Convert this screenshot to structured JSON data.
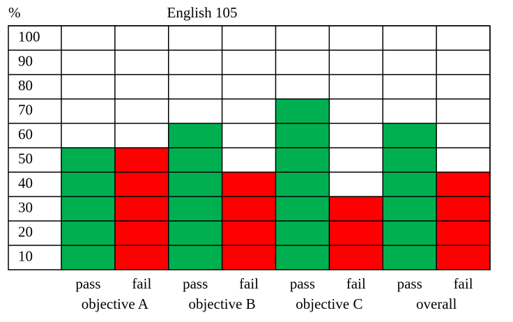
{
  "chart_data": {
    "type": "bar",
    "title": "English 105",
    "ylabel": "%",
    "categories": [
      "objective A",
      "objective B",
      "objective C",
      "overall"
    ],
    "series": [
      {
        "name": "pass",
        "color": "#00b050",
        "values": [
          50,
          60,
          70,
          60
        ]
      },
      {
        "name": "fail",
        "color": "#ff0000",
        "values": [
          50,
          40,
          30,
          40
        ]
      }
    ],
    "ylim": [
      0,
      100
    ],
    "yticks": [
      10,
      20,
      30,
      40,
      50,
      60,
      70,
      80,
      90,
      100
    ],
    "grid": true
  }
}
